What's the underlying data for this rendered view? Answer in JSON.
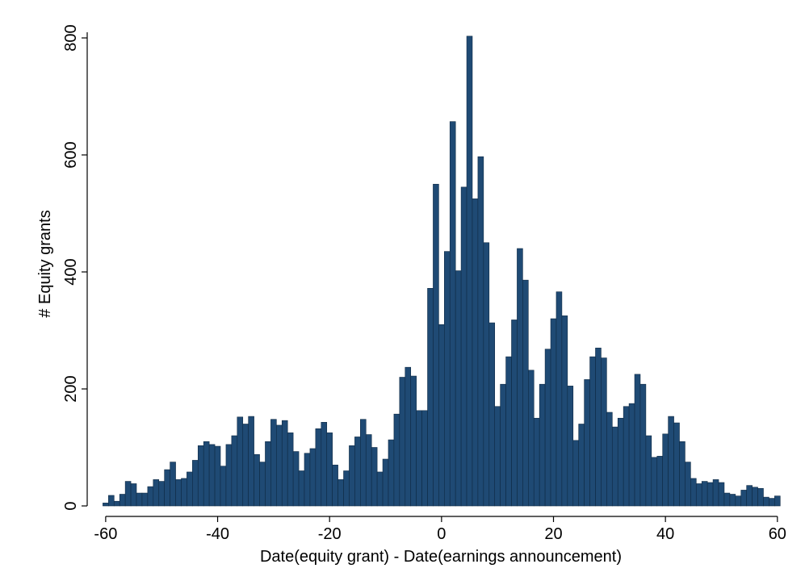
{
  "chart_data": {
    "type": "histogram",
    "x_label": "Date(equity grant) - Date(earnings announcement)",
    "y_label": "# Equity grants",
    "color": "#1f4a74",
    "bins": [
      -60.5,
      -59.5,
      -58.5,
      -57.5,
      -56.5,
      -55.5,
      -54.5,
      -53.5,
      -52.5,
      -51.5,
      -50.5,
      -49.5,
      -48.5,
      -47.5,
      -46.5,
      -45.5,
      -44.5,
      -43.5,
      -42.5,
      -41.5,
      -40.5,
      -39.5,
      -38.5,
      -37.5,
      -36.5,
      -35.5,
      -34.5,
      -33.5,
      -32.5,
      -31.5,
      -30.5,
      -29.5,
      -28.5,
      -27.5,
      -26.5,
      -25.5,
      -24.5,
      -23.5,
      -22.5,
      -21.5,
      -20.5,
      -19.5,
      -18.5,
      -17.5,
      -16.5,
      -15.5,
      -14.5,
      -13.5,
      -12.5,
      -11.5,
      -10.5,
      -9.5,
      -8.5,
      -7.5,
      -6.5,
      -5.5,
      -4.5,
      -3.5,
      -2.5,
      -1.5,
      -0.5,
      0.5,
      1.5,
      2.5,
      3.5,
      4.5,
      5.5,
      6.5,
      7.5,
      8.5,
      9.5,
      10.5,
      11.5,
      12.5,
      13.5,
      14.5,
      15.5,
      16.5,
      17.5,
      18.5,
      19.5,
      20.5,
      21.5,
      22.5,
      23.5,
      24.5,
      25.5,
      26.5,
      27.5,
      28.5,
      29.5,
      30.5,
      31.5,
      32.5,
      33.5,
      34.5,
      35.5,
      36.5,
      37.5,
      38.5,
      39.5,
      40.5,
      41.5,
      42.5,
      43.5,
      44.5,
      45.5,
      46.5,
      47.5,
      48.5,
      49.5,
      50.5,
      51.5,
      52.5,
      53.5,
      54.5,
      55.5,
      56.5,
      57.5,
      58.5,
      59.5,
      60.5
    ],
    "values": [
      5,
      18,
      8,
      20,
      42,
      38,
      22,
      22,
      33,
      45,
      42,
      62,
      75,
      45,
      47,
      58,
      78,
      103,
      110,
      105,
      102,
      68,
      105,
      120,
      152,
      140,
      153,
      88,
      75,
      110,
      148,
      138,
      146,
      125,
      93,
      60,
      90,
      98,
      132,
      143,
      125,
      70,
      45,
      60,
      103,
      118,
      148,
      122,
      100,
      58,
      80,
      113,
      157,
      220,
      237,
      222,
      163,
      163,
      372,
      550,
      310,
      435,
      657,
      402,
      545,
      803,
      525,
      597,
      450,
      313,
      170,
      208,
      255,
      318,
      440,
      386,
      232,
      150,
      208,
      268,
      320,
      366,
      325,
      205,
      112,
      140,
      216,
      255,
      270,
      253,
      160,
      135,
      150,
      170,
      175,
      225,
      208,
      120,
      83,
      85,
      123,
      153,
      142,
      110,
      75,
      47,
      38,
      42,
      40,
      45,
      40,
      22,
      20,
      17,
      27,
      35,
      32,
      30,
      15,
      13,
      17
    ],
    "xlim": [
      -63.3,
      63.2
    ],
    "ylim": [
      0,
      800
    ],
    "xticks": [
      -60,
      -40,
      -20,
      0,
      20,
      40,
      60
    ],
    "yticks": [
      0,
      200,
      400,
      600,
      800
    ]
  }
}
